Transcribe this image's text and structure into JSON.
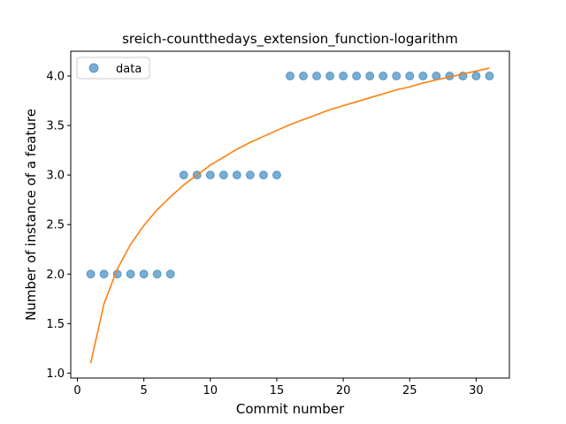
{
  "chart_data": {
    "type": "scatter",
    "title": "sreich-countthedays_extension_function-logarithm",
    "xlabel": "Commit number",
    "ylabel": "Number of instance of a feature",
    "xlim": [
      -0.5,
      32.5
    ],
    "ylim": [
      0.95,
      4.25
    ],
    "x_ticks": [
      0,
      5,
      10,
      15,
      20,
      25,
      30
    ],
    "y_ticks": [
      1.0,
      1.5,
      2.0,
      2.5,
      3.0,
      3.5,
      4.0
    ],
    "x_tick_labels": [
      "0",
      "5",
      "10",
      "15",
      "20",
      "25",
      "30"
    ],
    "y_tick_labels": [
      "1.0",
      "1.5",
      "2.0",
      "2.5",
      "3.0",
      "3.5",
      "4.0"
    ],
    "grid": false,
    "legend_position": "upper-left",
    "series": [
      {
        "name": "data",
        "kind": "scatter",
        "color": "#1f77b4",
        "x": [
          1,
          2,
          3,
          4,
          5,
          6,
          7,
          8,
          9,
          10,
          11,
          12,
          13,
          14,
          15,
          16,
          17,
          18,
          19,
          20,
          21,
          22,
          23,
          24,
          25,
          26,
          27,
          28,
          29,
          30,
          31
        ],
        "y": [
          2,
          2,
          2,
          2,
          2,
          2,
          2,
          3,
          3,
          3,
          3,
          3,
          3,
          3,
          3,
          4,
          4,
          4,
          4,
          4,
          4,
          4,
          4,
          4,
          4,
          4,
          4,
          4,
          4,
          4,
          4
        ]
      },
      {
        "kind": "line",
        "color": "#ff7f0e",
        "x": [
          1,
          2,
          3,
          4,
          5,
          6,
          7,
          8,
          9,
          10,
          11,
          12,
          13,
          14,
          15,
          16,
          17,
          18,
          19,
          20,
          21,
          22,
          23,
          24,
          25,
          26,
          27,
          28,
          29,
          30,
          31
        ],
        "y": [
          1.1,
          1.7,
          2.05,
          2.3,
          2.49,
          2.65,
          2.78,
          2.9,
          3.0,
          3.1,
          3.18,
          3.26,
          3.33,
          3.39,
          3.45,
          3.51,
          3.56,
          3.61,
          3.66,
          3.7,
          3.74,
          3.78,
          3.82,
          3.86,
          3.89,
          3.93,
          3.96,
          3.99,
          4.02,
          4.05,
          4.08
        ]
      }
    ]
  }
}
